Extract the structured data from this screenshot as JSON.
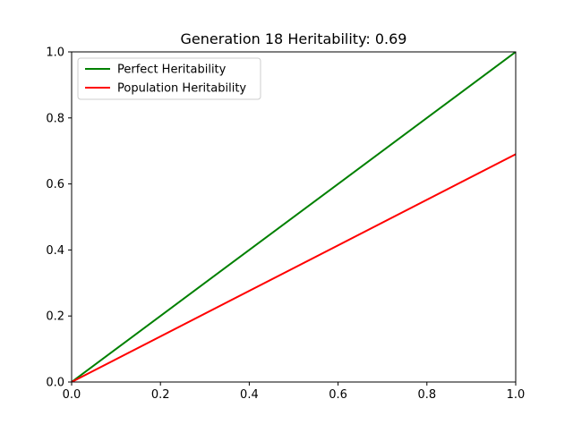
{
  "chart_data": {
    "type": "line",
    "title": "Generation 18 Heritability: 0.69",
    "xlabel": "",
    "ylabel": "",
    "xlim": [
      0.0,
      1.0
    ],
    "ylim": [
      0.0,
      1.0
    ],
    "xticks": [
      "0.0",
      "0.2",
      "0.4",
      "0.6",
      "0.8",
      "1.0"
    ],
    "yticks": [
      "0.0",
      "0.2",
      "0.4",
      "0.6",
      "0.8",
      "1.0"
    ],
    "grid": false,
    "legend_position": "top-left",
    "series": [
      {
        "name": "Perfect Heritability",
        "color": "#008000",
        "x": [
          0.0,
          1.0
        ],
        "y": [
          0.0,
          1.0
        ]
      },
      {
        "name": "Population Heritability",
        "color": "#ff0000",
        "x": [
          0.0,
          1.0
        ],
        "y": [
          0.0,
          0.69
        ]
      }
    ]
  }
}
